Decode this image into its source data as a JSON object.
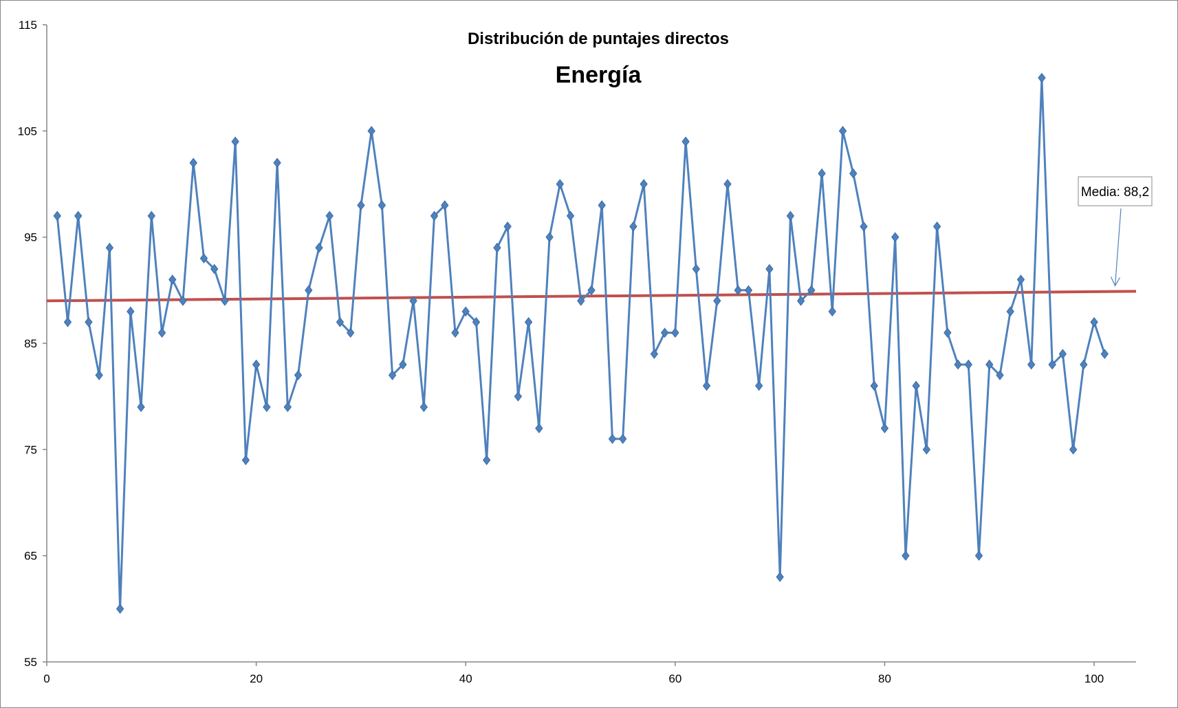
{
  "chart_data": {
    "type": "line",
    "title": "Distribución de puntajes directos",
    "subtitle": "Energía",
    "xlabel": "",
    "ylabel": "",
    "xlim": [
      0,
      104
    ],
    "ylim": [
      55,
      115
    ],
    "x_ticks": [
      0,
      20,
      40,
      60,
      80,
      100
    ],
    "y_ticks": [
      55,
      65,
      75,
      85,
      95,
      105,
      115
    ],
    "grid": false,
    "legend": "none",
    "colors": {
      "series": "#4f81bd",
      "trend": "#c0504d"
    },
    "series": [
      {
        "x": [
          1,
          2,
          3,
          4,
          5,
          6,
          7,
          8,
          9,
          10,
          11,
          12,
          13,
          14,
          15,
          16,
          17,
          18,
          19,
          20,
          21,
          22,
          23,
          24,
          25,
          26,
          27,
          28,
          29,
          30,
          31,
          32,
          33,
          34,
          35,
          36,
          37,
          38,
          39,
          40,
          41,
          42,
          43,
          44,
          45,
          46,
          47,
          48,
          49,
          50,
          51,
          52,
          53,
          54,
          55,
          56,
          57,
          58,
          59,
          60,
          61,
          62,
          63,
          64,
          65,
          66,
          67,
          68,
          69,
          70,
          71,
          72,
          73,
          74,
          75,
          76,
          77,
          78,
          79,
          80,
          81,
          82,
          83,
          84,
          85,
          86,
          87,
          88,
          89,
          90,
          91,
          92,
          93,
          94,
          95,
          96,
          97,
          98,
          99,
          100,
          101
        ],
        "values": [
          97,
          87,
          97,
          87,
          82,
          94,
          60,
          88,
          79,
          97,
          86,
          91,
          89,
          102,
          93,
          92,
          89,
          104,
          74,
          83,
          79,
          102,
          79,
          82,
          90,
          94,
          97,
          87,
          86,
          98,
          105,
          98,
          82,
          83,
          89,
          79,
          97,
          98,
          86,
          88,
          87,
          74,
          94,
          96,
          80,
          87,
          77,
          95,
          100,
          97,
          89,
          90,
          98,
          76,
          76,
          96,
          100,
          84,
          86,
          86,
          104,
          92,
          81,
          89,
          100,
          90,
          90,
          81,
          92,
          63,
          97,
          89,
          90,
          101,
          88,
          105,
          101,
          96,
          81,
          77,
          95,
          65,
          81,
          75,
          96,
          86,
          83,
          83,
          65,
          83,
          82,
          88,
          91,
          83,
          110,
          83,
          84,
          75,
          83,
          87,
          84
        ]
      }
    ],
    "trendline": {
      "x": [
        0,
        104
      ],
      "y": [
        89,
        89.9
      ]
    },
    "annotations": [
      {
        "text": "Media: 88,2",
        "arrow_to": [
          102,
          89.9
        ]
      }
    ]
  }
}
